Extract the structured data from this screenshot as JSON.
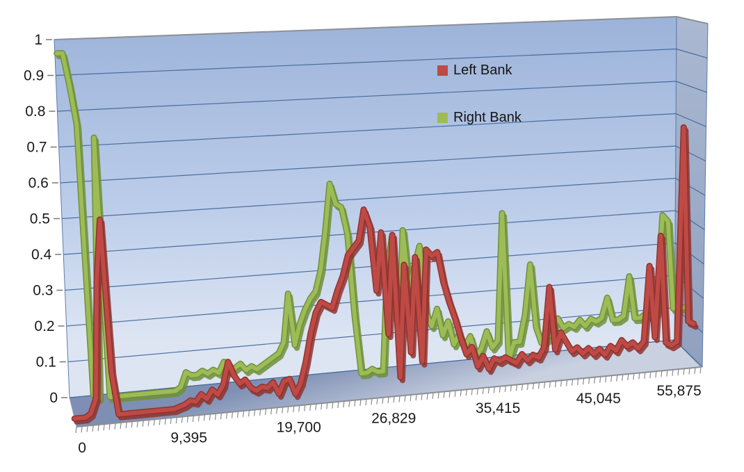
{
  "chart_data": {
    "type": "line",
    "variant": "3d-ribbon-line",
    "title": "",
    "background": "#ffffff",
    "grid": true,
    "legend": {
      "position": "inside-plot-upper-center"
    },
    "y_axis": {
      "min": 0,
      "max": 1,
      "step": 0.1,
      "labels": [
        "0",
        "0.1",
        "0.2",
        "0.3",
        "0.4",
        "0.5",
        "0.6",
        "0.7",
        "0.8",
        "0.9",
        "1"
      ]
    },
    "x_axis": {
      "labels": [
        "0",
        "9,395",
        "19,700",
        "26,829",
        "35,415",
        "45,045",
        "55,875"
      ],
      "positions": [
        0.009,
        0.18,
        0.356,
        0.508,
        0.675,
        0.836,
        0.965
      ],
      "minor_tick_count": 113
    },
    "colors": {
      "wall_top": "#9cb3d9",
      "wall_mid": "#bccdea",
      "wall_bottom": "#dde5f3",
      "side_wall_top": "#aab8d1",
      "side_wall_bottom": "#90a0bf",
      "floor_back": "#7e8fb3",
      "floor_front": "#c9d1e1",
      "gridline": "#3d6497",
      "wall_border": "#5c7ca8",
      "outer_edge": "#8c8f94",
      "tick": "#8a8a8a",
      "label_text": "#1a1a1a"
    },
    "series": [
      {
        "name": "Left Bank",
        "color": "#bf4a45",
        "edge_color": "#8e322e",
        "depth": 0.72,
        "values": [
          0.0,
          0.0,
          0.0,
          0.01,
          0.05,
          0.38,
          0.55,
          0.12,
          0.0,
          0.0,
          0.0,
          0.0,
          0.0,
          0.0,
          0.0,
          0.0,
          0.0,
          0.0,
          0.0,
          0.005,
          0.01,
          0.02,
          0.015,
          0.035,
          0.02,
          0.045,
          0.03,
          0.055,
          0.12,
          0.08,
          0.055,
          0.065,
          0.04,
          0.03,
          0.04,
          0.035,
          0.05,
          0.015,
          0.05,
          0.055,
          0.01,
          0.04,
          0.1,
          0.18,
          0.24,
          0.27,
          0.26,
          0.25,
          0.3,
          0.34,
          0.4,
          0.42,
          0.44,
          0.53,
          0.48,
          0.29,
          0.46,
          0.16,
          0.45,
          0.03,
          0.36,
          0.1,
          0.38,
          0.07,
          0.4,
          0.38,
          0.39,
          0.3,
          0.24,
          0.19,
          0.13,
          0.08,
          0.1,
          0.04,
          0.07,
          0.03,
          0.06,
          0.05,
          0.06,
          0.05,
          0.04,
          0.065,
          0.045,
          0.06,
          0.05,
          0.08,
          0.26,
          0.07,
          0.12,
          0.09,
          0.06,
          0.07,
          0.05,
          0.065,
          0.045,
          0.06,
          0.04,
          0.065,
          0.05,
          0.08,
          0.06,
          0.07,
          0.05,
          0.07,
          0.3,
          0.08,
          0.39,
          0.06,
          0.05,
          0.06,
          0.72,
          0.12,
          0.11
        ]
      },
      {
        "name": "Right Bank",
        "color": "#9dbc56",
        "edge_color": "#6f8f3b",
        "depth": 0.35,
        "values": [
          0.99,
          0.99,
          0.9,
          0.79,
          0.03,
          0.02,
          0.75,
          0.02,
          0.02,
          0.02,
          0.02,
          0.02,
          0.02,
          0.02,
          0.02,
          0.02,
          0.02,
          0.02,
          0.02,
          0.02,
          0.03,
          0.07,
          0.06,
          0.06,
          0.07,
          0.06,
          0.07,
          0.06,
          0.09,
          0.06,
          0.07,
          0.08,
          0.06,
          0.07,
          0.06,
          0.07,
          0.08,
          0.09,
          0.1,
          0.13,
          0.27,
          0.12,
          0.18,
          0.22,
          0.25,
          0.27,
          0.33,
          0.44,
          0.58,
          0.52,
          0.51,
          0.43,
          0.19,
          0.02,
          0.02,
          0.03,
          0.02,
          0.02,
          0.3,
          0.41,
          0.08,
          0.43,
          0.25,
          0.32,
          0.38,
          0.18,
          0.14,
          0.19,
          0.11,
          0.15,
          0.08,
          0.11,
          0.07,
          0.1,
          0.04,
          0.06,
          0.11,
          0.06,
          0.08,
          0.46,
          0.02,
          0.07,
          0.07,
          0.15,
          0.3,
          0.11,
          0.06,
          0.07,
          0.1,
          0.13,
          0.1,
          0.11,
          0.1,
          0.12,
          0.1,
          0.12,
          0.11,
          0.12,
          0.18,
          0.11,
          0.11,
          0.12,
          0.24,
          0.11,
          0.11,
          0.12,
          0.11,
          0.12,
          0.42,
          0.4,
          0.13,
          0.13,
          0.13
        ]
      }
    ]
  }
}
